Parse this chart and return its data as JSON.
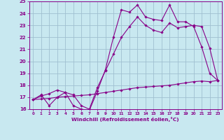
{
  "xlabel": "Windchill (Refroidissement éolien,°C)",
  "xlim": [
    -0.5,
    23.5
  ],
  "ylim": [
    16,
    25
  ],
  "xticks": [
    0,
    1,
    2,
    3,
    4,
    5,
    6,
    7,
    8,
    9,
    10,
    11,
    12,
    13,
    14,
    15,
    16,
    17,
    18,
    19,
    20,
    21,
    22,
    23
  ],
  "yticks": [
    16,
    17,
    18,
    19,
    20,
    21,
    22,
    23,
    24,
    25
  ],
  "bg_color": "#c8e8f0",
  "grid_color": "#a0c0d0",
  "line_color": "#880088",
  "line1_y": [
    16.8,
    17.2,
    16.3,
    17.0,
    17.4,
    16.3,
    16.0,
    15.9,
    17.5,
    19.3,
    22.0,
    24.3,
    24.1,
    24.7,
    23.7,
    23.5,
    23.4,
    24.7,
    23.3,
    23.3,
    22.9,
    21.2,
    19.0,
    18.4
  ],
  "line2_y": [
    16.8,
    16.85,
    16.9,
    17.0,
    17.05,
    17.1,
    17.15,
    17.2,
    17.3,
    17.4,
    17.5,
    17.6,
    17.7,
    17.8,
    17.85,
    17.9,
    17.95,
    18.0,
    18.1,
    18.2,
    18.3,
    18.35,
    18.3,
    18.4
  ],
  "line3_y": [
    16.8,
    17.1,
    17.3,
    17.6,
    17.4,
    17.2,
    16.3,
    16.0,
    17.8,
    19.2,
    20.6,
    22.0,
    22.9,
    23.7,
    23.0,
    22.6,
    22.4,
    23.2,
    22.8,
    22.9,
    23.0,
    22.9,
    21.1,
    18.4
  ]
}
